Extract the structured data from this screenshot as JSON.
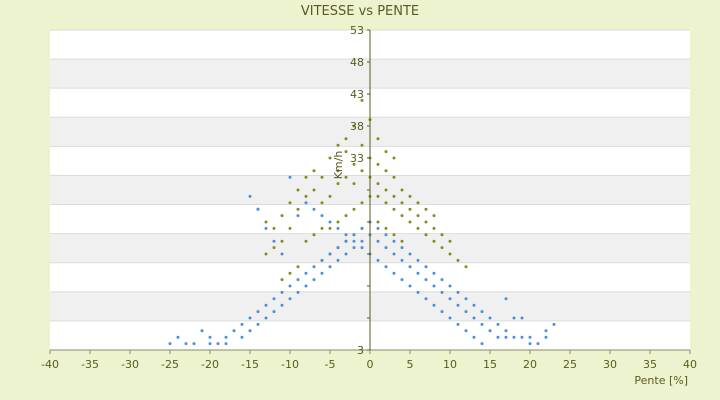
{
  "chart_data": {
    "type": "scatter",
    "title": "VITESSE vs PENTE",
    "xlabel": "Pente [%]",
    "ylabel": "Km/h",
    "xlim": [
      -40,
      40
    ],
    "ylim": [
      3,
      53
    ],
    "x_ticks": [
      -40,
      -35,
      -30,
      -25,
      -20,
      -15,
      -10,
      -5,
      0,
      5,
      10,
      15,
      20,
      25,
      30,
      35,
      40
    ],
    "y_ticks": [
      3,
      8,
      13,
      18,
      23,
      28,
      33,
      38,
      43,
      48,
      53
    ],
    "y_tick_labels": [
      "3",
      "",
      "",
      "",
      "",
      "",
      "33",
      "38",
      "43",
      "48",
      "53"
    ],
    "grid": "horizontal alternating bands",
    "legend": "none",
    "colors": {
      "background": "#eef3cf",
      "plot_band_light": "#ffffff",
      "plot_band_dark": "#f0f0f0",
      "series_blue": "#4a90d9",
      "series_olive": "#8a8a1a",
      "text": "#5a5a1e"
    },
    "series": [
      {
        "color": "#8a8a1a",
        "points": [
          [
            -5,
            33
          ],
          [
            -4,
            31
          ],
          [
            -3,
            34
          ],
          [
            -2,
            32
          ],
          [
            -1,
            35
          ],
          [
            0,
            33
          ],
          [
            1,
            32
          ],
          [
            2,
            31
          ],
          [
            3,
            30
          ],
          [
            4,
            28
          ],
          [
            -6,
            30
          ],
          [
            -7,
            28
          ],
          [
            -8,
            27
          ],
          [
            -9,
            25
          ],
          [
            -10,
            26
          ],
          [
            -11,
            24
          ],
          [
            -12,
            22
          ],
          [
            -14,
            25
          ],
          [
            -13,
            23
          ],
          [
            -6,
            26
          ],
          [
            -5,
            27
          ],
          [
            -4,
            29
          ],
          [
            -3,
            30
          ],
          [
            -2,
            29
          ],
          [
            -1,
            31
          ],
          [
            0,
            30
          ],
          [
            1,
            29
          ],
          [
            2,
            28
          ],
          [
            3,
            27
          ],
          [
            4,
            26
          ],
          [
            5,
            25
          ],
          [
            6,
            24
          ],
          [
            7,
            23
          ],
          [
            8,
            22
          ],
          [
            9,
            21
          ],
          [
            10,
            20
          ],
          [
            6,
            26
          ],
          [
            5,
            27
          ],
          [
            7,
            25
          ],
          [
            8,
            24
          ],
          [
            -3,
            36
          ],
          [
            -2,
            38
          ],
          [
            -1,
            42
          ],
          [
            0,
            39
          ],
          [
            1,
            36
          ],
          [
            -4,
            35
          ],
          [
            2,
            34
          ],
          [
            3,
            33
          ],
          [
            -7,
            31
          ],
          [
            -8,
            30
          ],
          [
            -9,
            28
          ],
          [
            -10,
            22
          ],
          [
            -11,
            20
          ],
          [
            -12,
            19
          ],
          [
            -13,
            18
          ],
          [
            -6,
            22
          ],
          [
            -7,
            21
          ],
          [
            -8,
            20
          ],
          [
            -5,
            22
          ],
          [
            -4,
            23
          ],
          [
            -3,
            24
          ],
          [
            -2,
            25
          ],
          [
            -1,
            26
          ],
          [
            0,
            27
          ],
          [
            1,
            27
          ],
          [
            2,
            26
          ],
          [
            3,
            25
          ],
          [
            4,
            24
          ],
          [
            5,
            23
          ],
          [
            6,
            22
          ],
          [
            7,
            21
          ],
          [
            8,
            20
          ],
          [
            9,
            19
          ],
          [
            10,
            18
          ],
          [
            11,
            17
          ],
          [
            12,
            16
          ],
          [
            -9,
            16
          ],
          [
            -10,
            15
          ],
          [
            -11,
            14
          ],
          [
            -6,
            17
          ],
          [
            -5,
            18
          ],
          [
            -4,
            19
          ],
          [
            -3,
            20
          ],
          [
            -2,
            21
          ],
          [
            -1,
            22
          ],
          [
            0,
            23
          ],
          [
            1,
            23
          ],
          [
            2,
            22
          ],
          [
            3,
            21
          ],
          [
            4,
            20
          ]
        ]
      },
      {
        "color": "#4a90d9",
        "points": [
          [
            -25,
            4
          ],
          [
            -23,
            4
          ],
          [
            -20,
            4
          ],
          [
            -18,
            5
          ],
          [
            -17,
            6
          ],
          [
            -16,
            7
          ],
          [
            -15,
            8
          ],
          [
            -14,
            9
          ],
          [
            -13,
            10
          ],
          [
            -12,
            11
          ],
          [
            -11,
            12
          ],
          [
            -10,
            13
          ],
          [
            -9,
            14
          ],
          [
            -8,
            15
          ],
          [
            -7,
            16
          ],
          [
            -6,
            17
          ],
          [
            -5,
            18
          ],
          [
            -4,
            19
          ],
          [
            -3,
            20
          ],
          [
            -2,
            21
          ],
          [
            -1,
            22
          ],
          [
            0,
            23
          ],
          [
            1,
            22
          ],
          [
            2,
            21
          ],
          [
            3,
            20
          ],
          [
            4,
            19
          ],
          [
            5,
            18
          ],
          [
            6,
            17
          ],
          [
            7,
            16
          ],
          [
            8,
            15
          ],
          [
            9,
            14
          ],
          [
            10,
            13
          ],
          [
            11,
            12
          ],
          [
            12,
            11
          ],
          [
            13,
            10
          ],
          [
            14,
            9
          ],
          [
            15,
            8
          ],
          [
            16,
            7
          ],
          [
            17,
            6
          ],
          [
            18,
            5
          ],
          [
            19,
            5
          ],
          [
            20,
            4
          ],
          [
            21,
            4
          ],
          [
            22,
            5
          ],
          [
            23,
            7
          ],
          [
            17,
            11
          ],
          [
            18,
            8
          ],
          [
            19,
            8
          ],
          [
            20,
            5
          ],
          [
            22,
            6
          ],
          [
            -15,
            27
          ],
          [
            -14,
            25
          ],
          [
            -13,
            22
          ],
          [
            -12,
            20
          ],
          [
            -11,
            18
          ],
          [
            -10,
            30
          ],
          [
            -9,
            24
          ],
          [
            -8,
            26
          ],
          [
            -7,
            25
          ],
          [
            -6,
            24
          ],
          [
            -5,
            23
          ],
          [
            -4,
            22
          ],
          [
            -3,
            21
          ],
          [
            -2,
            20
          ],
          [
            -1,
            19
          ],
          [
            0,
            18
          ],
          [
            1,
            17
          ],
          [
            2,
            16
          ],
          [
            3,
            15
          ],
          [
            4,
            14
          ],
          [
            5,
            13
          ],
          [
            6,
            12
          ],
          [
            7,
            11
          ],
          [
            8,
            10
          ],
          [
            9,
            9
          ],
          [
            10,
            8
          ],
          [
            11,
            7
          ],
          [
            12,
            6
          ],
          [
            13,
            5
          ],
          [
            14,
            4
          ],
          [
            -16,
            5
          ],
          [
            -15,
            6
          ],
          [
            -14,
            7
          ],
          [
            -13,
            8
          ],
          [
            -12,
            9
          ],
          [
            -11,
            10
          ],
          [
            -10,
            11
          ],
          [
            -9,
            12
          ],
          [
            -8,
            13
          ],
          [
            -7,
            14
          ],
          [
            -6,
            15
          ],
          [
            -5,
            16
          ],
          [
            -4,
            17
          ],
          [
            -3,
            18
          ],
          [
            -2,
            19
          ],
          [
            -1,
            20
          ],
          [
            0,
            21
          ],
          [
            1,
            20
          ],
          [
            2,
            19
          ],
          [
            3,
            18
          ],
          [
            4,
            17
          ],
          [
            5,
            16
          ],
          [
            6,
            15
          ],
          [
            7,
            14
          ],
          [
            8,
            13
          ],
          [
            9,
            12
          ],
          [
            10,
            11
          ],
          [
            11,
            10
          ],
          [
            12,
            9
          ],
          [
            13,
            8
          ],
          [
            14,
            7
          ],
          [
            15,
            6
          ],
          [
            16,
            5
          ],
          [
            17,
            5
          ],
          [
            -18,
            4
          ],
          [
            -19,
            4
          ],
          [
            -20,
            5
          ],
          [
            -21,
            6
          ],
          [
            -22,
            4
          ],
          [
            -24,
            5
          ]
        ]
      }
    ]
  }
}
